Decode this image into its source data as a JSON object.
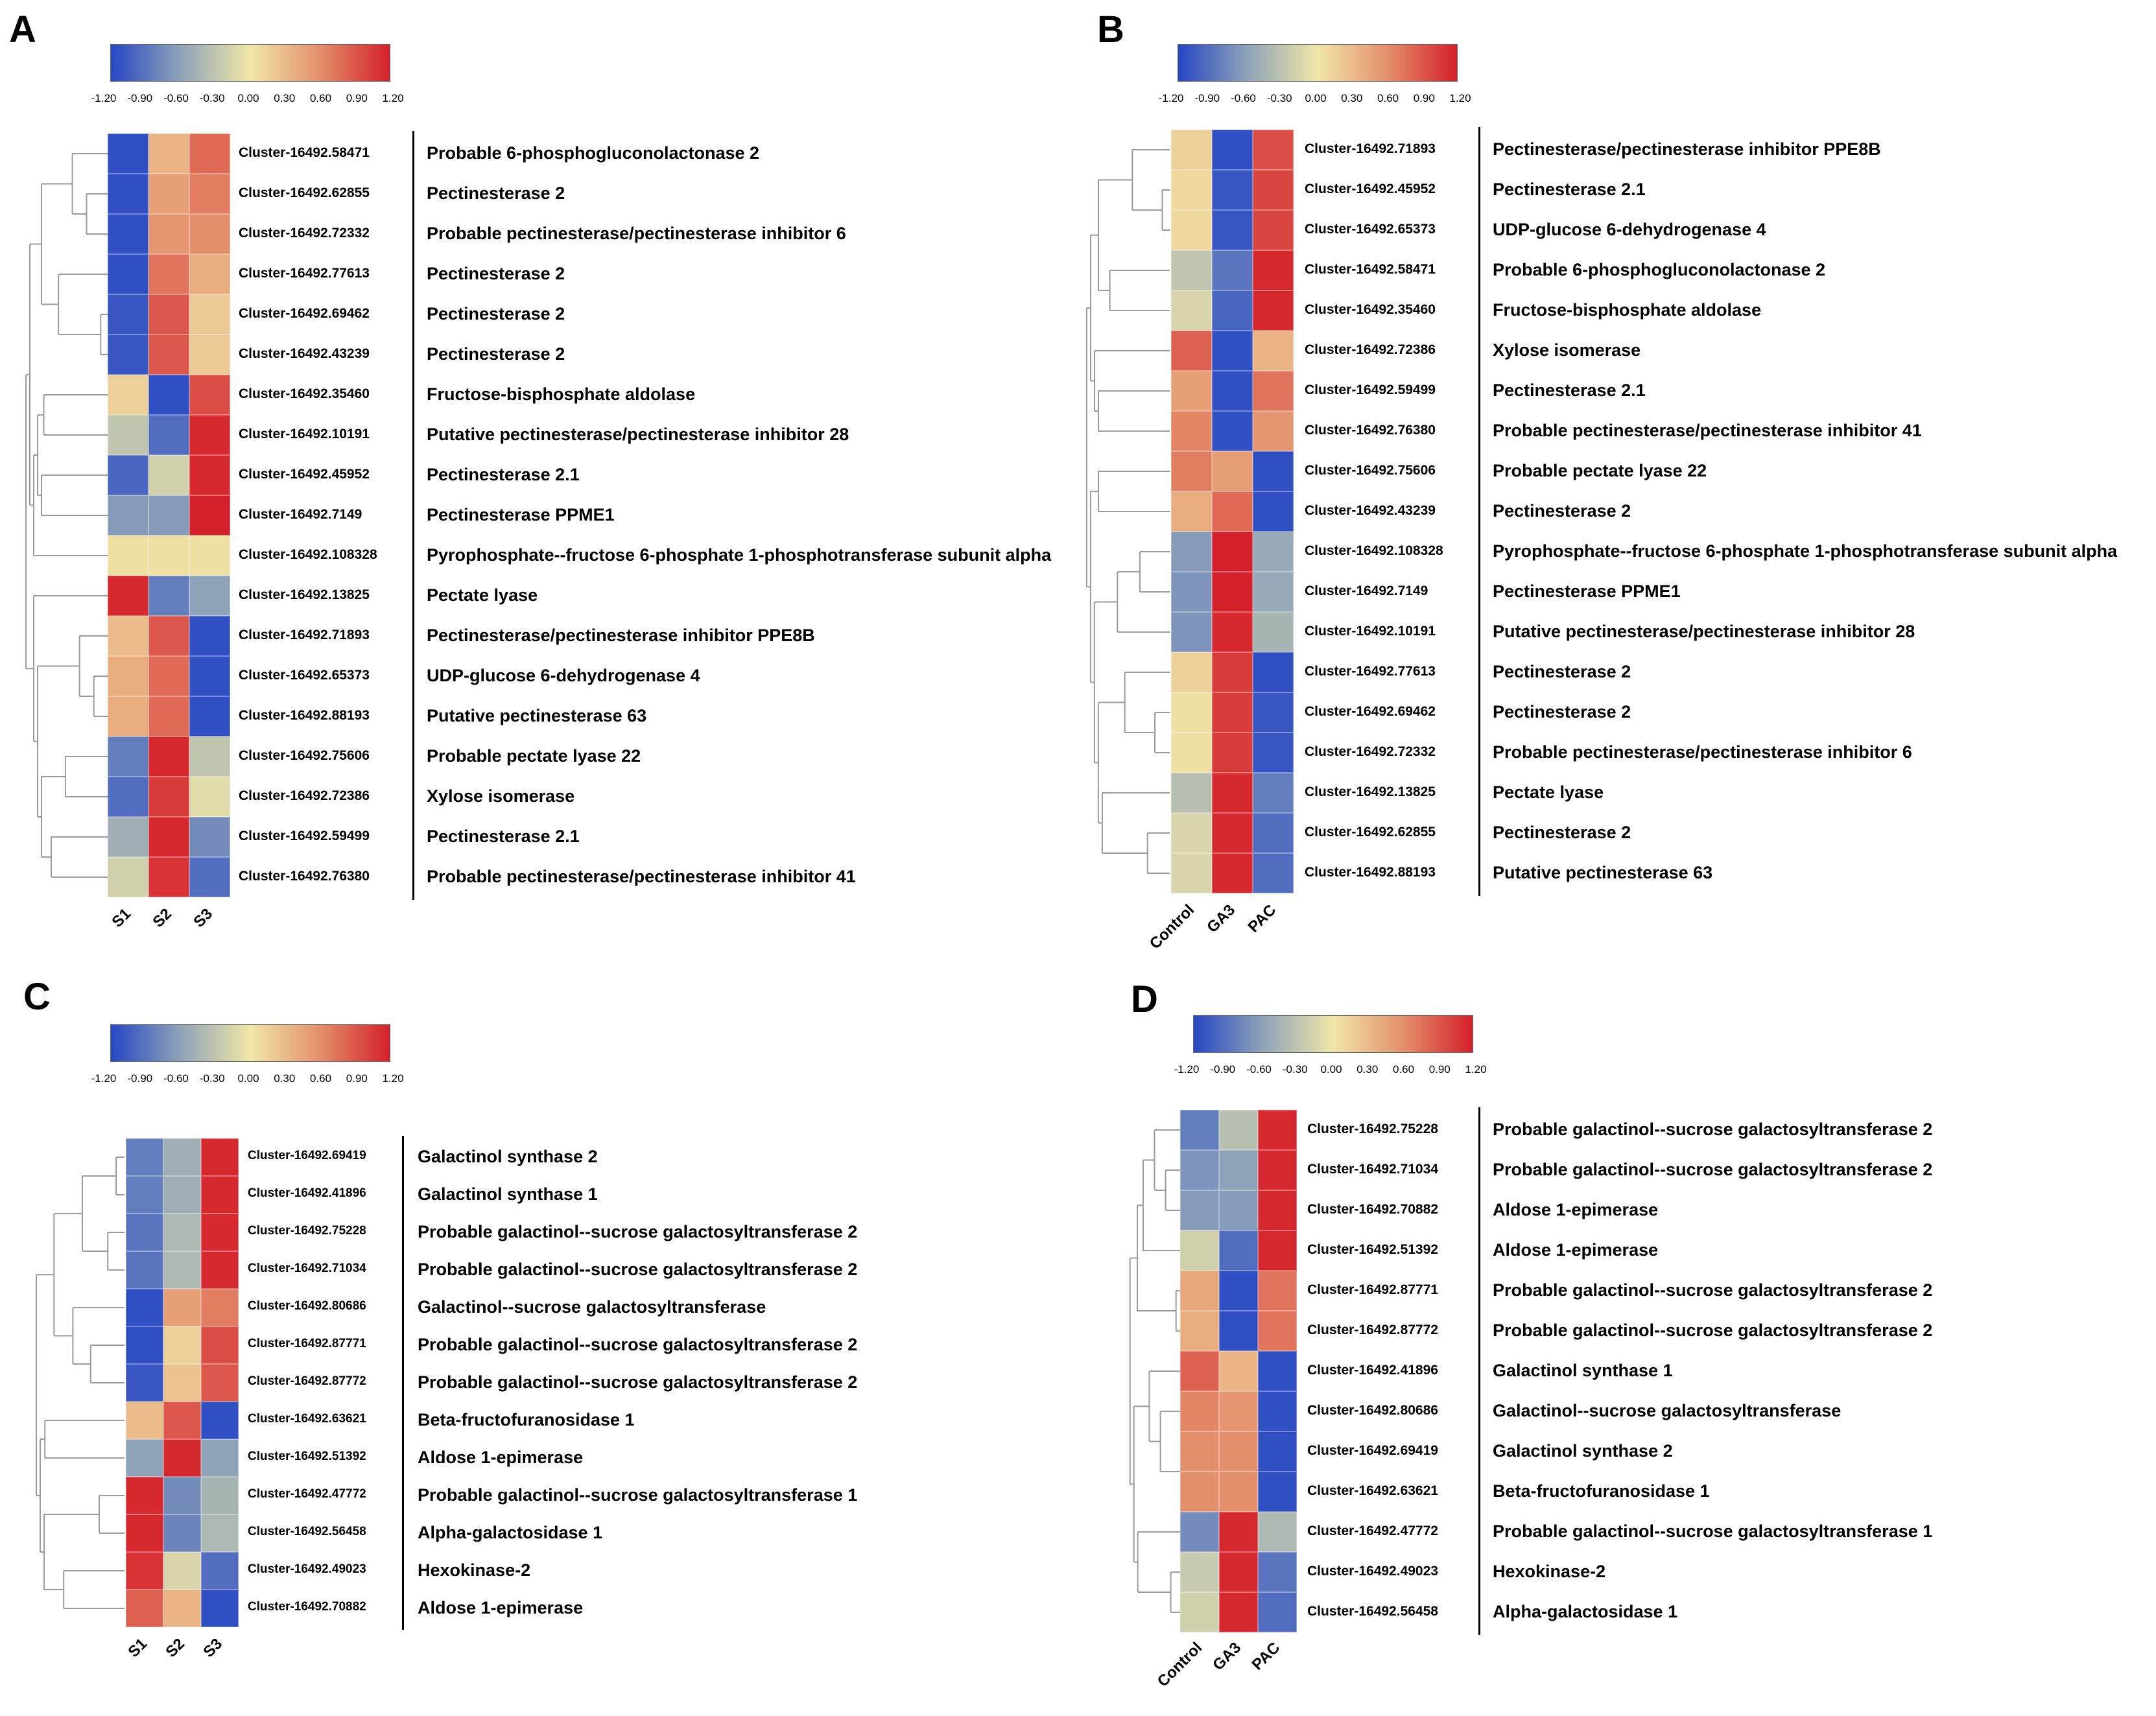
{
  "colormap": {
    "stops": [
      [
        "#2647c4",
        -1.2
      ],
      [
        "#8fa3b8",
        -0.6
      ],
      [
        "#f0e6a8",
        0.0
      ],
      [
        "#e48f6b",
        0.6
      ],
      [
        "#d4202a",
        1.2
      ]
    ],
    "ticks": [
      "-1.20",
      "-0.90",
      "-0.60",
      "-0.30",
      "0.00",
      "0.30",
      "0.60",
      "0.90",
      "1.20"
    ]
  },
  "chart_data": [
    {
      "panel": "A",
      "type": "heatmap",
      "columns": [
        "S1",
        "S2",
        "S3"
      ],
      "rows": [
        {
          "cluster": "Cluster-16492.58471",
          "gene": "Probable 6-phosphogluconolactonase 2",
          "values": [
            -1.15,
            0.35,
            0.8
          ]
        },
        {
          "cluster": "Cluster-16492.62855",
          "gene": "Pectinesterase 2",
          "values": [
            -1.15,
            0.5,
            0.7
          ]
        },
        {
          "cluster": "Cluster-16492.72332",
          "gene": "Probable pectinesterase/pectinesterase inhibitor 6",
          "values": [
            -1.15,
            0.55,
            0.6
          ]
        },
        {
          "cluster": "Cluster-16492.77613",
          "gene": "Pectinesterase 2",
          "values": [
            -1.15,
            0.75,
            0.4
          ]
        },
        {
          "cluster": "Cluster-16492.69462",
          "gene": "Pectinesterase 2",
          "values": [
            -1.1,
            0.9,
            0.2
          ]
        },
        {
          "cluster": "Cluster-16492.43239",
          "gene": "Pectinesterase 2",
          "values": [
            -1.1,
            0.9,
            0.2
          ]
        },
        {
          "cluster": "Cluster-16492.35460",
          "gene": "Fructose-bisphosphate aldolase",
          "values": [
            0.15,
            -1.15,
            0.95
          ]
        },
        {
          "cluster": "Cluster-16492.10191",
          "gene": "Putative pectinesterase/pectinesterase inhibitor 28",
          "values": [
            -0.3,
            -0.95,
            1.15
          ]
        },
        {
          "cluster": "Cluster-16492.45952",
          "gene": "Pectinesterase 2.1",
          "values": [
            -1.0,
            -0.2,
            1.15
          ]
        },
        {
          "cluster": "Cluster-16492.7149",
          "gene": "Pectinesterase PPME1",
          "values": [
            -0.65,
            -0.65,
            1.2
          ]
        },
        {
          "cluster": "Cluster-16492.108328",
          "gene": "Pyrophosphate--fructose 6-phosphate 1-phosphotransferase subunit alpha",
          "values": [
            0.05,
            0.05,
            0.05
          ]
        },
        {
          "cluster": "Cluster-16492.13825",
          "gene": "Pectate lyase",
          "values": [
            1.15,
            -0.85,
            -0.6
          ]
        },
        {
          "cluster": "Cluster-16492.71893",
          "gene": "Pectinesterase/pectinesterase inhibitor PPE8B",
          "values": [
            0.3,
            0.9,
            -1.15
          ]
        },
        {
          "cluster": "Cluster-16492.65373",
          "gene": "UDP-glucose 6-dehydrogenase 4",
          "values": [
            0.4,
            0.8,
            -1.15
          ]
        },
        {
          "cluster": "Cluster-16492.88193",
          "gene": "Putative pectinesterase 63",
          "values": [
            0.4,
            0.8,
            -1.15
          ]
        },
        {
          "cluster": "Cluster-16492.75606",
          "gene": "Probable pectate lyase 22",
          "values": [
            -0.85,
            1.15,
            -0.3
          ]
        },
        {
          "cluster": "Cluster-16492.72386",
          "gene": "Xylose isomerase",
          "values": [
            -0.95,
            1.05,
            -0.1
          ]
        },
        {
          "cluster": "Cluster-16492.59499",
          "gene": "Pectinesterase 2.1",
          "values": [
            -0.5,
            1.15,
            -0.75
          ]
        },
        {
          "cluster": "Cluster-16492.76380",
          "gene": "Probable pectinesterase/pectinesterase inhibitor 41",
          "values": [
            -0.2,
            1.1,
            -0.95
          ]
        }
      ]
    },
    {
      "panel": "B",
      "type": "heatmap",
      "columns": [
        "Control",
        "GA3",
        "PAC"
      ],
      "rows": [
        {
          "cluster": "Cluster-16492.71893",
          "gene": "Pectinesterase/pectinesterase inhibitor PPE8B",
          "values": [
            0.15,
            -1.15,
            0.95
          ]
        },
        {
          "cluster": "Cluster-16492.45952",
          "gene": "Pectinesterase 2.1",
          "values": [
            0.1,
            -1.1,
            1.0
          ]
        },
        {
          "cluster": "Cluster-16492.65373",
          "gene": "UDP-glucose 6-dehydrogenase 4",
          "values": [
            0.1,
            -1.1,
            1.0
          ]
        },
        {
          "cluster": "Cluster-16492.58471",
          "gene": "Probable 6-phosphogluconolactonase 2",
          "values": [
            -0.3,
            -0.9,
            1.15
          ]
        },
        {
          "cluster": "Cluster-16492.35460",
          "gene": "Fructose-bisphosphate aldolase",
          "values": [
            -0.15,
            -1.0,
            1.15
          ]
        },
        {
          "cluster": "Cluster-16492.72386",
          "gene": "Xylose isomerase",
          "values": [
            0.85,
            -1.15,
            0.35
          ]
        },
        {
          "cluster": "Cluster-16492.59499",
          "gene": "Pectinesterase 2.1",
          "values": [
            0.5,
            -1.15,
            0.75
          ]
        },
        {
          "cluster": "Cluster-16492.76380",
          "gene": "Probable pectinesterase/pectinesterase inhibitor 41",
          "values": [
            0.65,
            -1.15,
            0.55
          ]
        },
        {
          "cluster": "Cluster-16492.75606",
          "gene": "Probable pectate lyase 22",
          "values": [
            0.7,
            0.5,
            -1.15
          ]
        },
        {
          "cluster": "Cluster-16492.43239",
          "gene": "Pectinesterase 2",
          "values": [
            0.4,
            0.8,
            -1.15
          ]
        },
        {
          "cluster": "Cluster-16492.108328",
          "gene": "Pyrophosphate--fructose 6-phosphate 1-phosphotransferase subunit alpha",
          "values": [
            -0.65,
            1.2,
            -0.55
          ]
        },
        {
          "cluster": "Cluster-16492.7149",
          "gene": "Pectinesterase PPME1",
          "values": [
            -0.7,
            1.2,
            -0.55
          ]
        },
        {
          "cluster": "Cluster-16492.10191",
          "gene": "Putative pectinesterase/pectinesterase inhibitor 28",
          "values": [
            -0.7,
            1.15,
            -0.45
          ]
        },
        {
          "cluster": "Cluster-16492.77613",
          "gene": "Pectinesterase 2",
          "values": [
            0.15,
            1.05,
            -1.15
          ]
        },
        {
          "cluster": "Cluster-16492.69462",
          "gene": "Pectinesterase 2",
          "values": [
            0.05,
            1.05,
            -1.1
          ]
        },
        {
          "cluster": "Cluster-16492.72332",
          "gene": "Probable pectinesterase/pectinesterase inhibitor 6",
          "values": [
            0.05,
            1.05,
            -1.1
          ]
        },
        {
          "cluster": "Cluster-16492.13825",
          "gene": "Pectate lyase",
          "values": [
            -0.35,
            1.15,
            -0.85
          ]
        },
        {
          "cluster": "Cluster-16492.62855",
          "gene": "Pectinesterase 2",
          "values": [
            -0.15,
            1.15,
            -0.95
          ]
        },
        {
          "cluster": "Cluster-16492.88193",
          "gene": "Putative pectinesterase 63",
          "values": [
            -0.15,
            1.15,
            -0.95
          ]
        }
      ]
    },
    {
      "panel": "C",
      "type": "heatmap",
      "columns": [
        "S1",
        "S2",
        "S3"
      ],
      "rows": [
        {
          "cluster": "Cluster-16492.69419",
          "gene": "Galactinol synthase 2",
          "values": [
            -0.85,
            -0.5,
            1.15
          ]
        },
        {
          "cluster": "Cluster-16492.41896",
          "gene": "Galactinol synthase 1",
          "values": [
            -0.85,
            -0.5,
            1.15
          ]
        },
        {
          "cluster": "Cluster-16492.75228",
          "gene": "Probable galactinol--sucrose galactosyltransferase 2",
          "values": [
            -0.9,
            -0.4,
            1.15
          ]
        },
        {
          "cluster": "Cluster-16492.71034",
          "gene": "Probable galactinol--sucrose galactosyltransferase 2",
          "values": [
            -0.9,
            -0.4,
            1.15
          ]
        },
        {
          "cluster": "Cluster-16492.80686",
          "gene": "Galactinol--sucrose galactosyltransferase",
          "values": [
            -1.15,
            0.5,
            0.7
          ]
        },
        {
          "cluster": "Cluster-16492.87771",
          "gene": "Probable galactinol--sucrose galactosyltransferase 2",
          "values": [
            -1.15,
            0.15,
            0.95
          ]
        },
        {
          "cluster": "Cluster-16492.87772",
          "gene": "Probable galactinol--sucrose galactosyltransferase 2",
          "values": [
            -1.1,
            0.25,
            0.9
          ]
        },
        {
          "cluster": "Cluster-16492.63621",
          "gene": "Beta-fructofuranosidase 1",
          "values": [
            0.3,
            0.9,
            -1.15
          ]
        },
        {
          "cluster": "Cluster-16492.51392",
          "gene": "Aldose 1-epimerase",
          "values": [
            -0.6,
            1.15,
            -0.6
          ]
        },
        {
          "cluster": "Cluster-16492.47772",
          "gene": "Probable galactinol--sucrose galactosyltransferase 1",
          "values": [
            1.15,
            -0.75,
            -0.45
          ]
        },
        {
          "cluster": "Cluster-16492.56458",
          "gene": "Alpha-galactosidase 1",
          "values": [
            1.15,
            -0.8,
            -0.4
          ]
        },
        {
          "cluster": "Cluster-16492.49023",
          "gene": "Hexokinase-2",
          "values": [
            1.1,
            -0.15,
            -0.95
          ]
        },
        {
          "cluster": "Cluster-16492.70882",
          "gene": "Aldose 1-epimerase",
          "values": [
            0.85,
            0.35,
            -1.15
          ]
        }
      ]
    },
    {
      "panel": "D",
      "type": "heatmap",
      "columns": [
        "Control",
        "GA3",
        "PAC"
      ],
      "rows": [
        {
          "cluster": "Cluster-16492.75228",
          "gene": "Probable galactinol--sucrose galactosyltransferase 2",
          "values": [
            -0.85,
            -0.35,
            1.15
          ]
        },
        {
          "cluster": "Cluster-16492.71034",
          "gene": "Probable galactinol--sucrose galactosyltransferase 2",
          "values": [
            -0.7,
            -0.6,
            1.15
          ]
        },
        {
          "cluster": "Cluster-16492.70882",
          "gene": "Aldose 1-epimerase",
          "values": [
            -0.65,
            -0.65,
            1.15
          ]
        },
        {
          "cluster": "Cluster-16492.51392",
          "gene": "Aldose 1-epimerase",
          "values": [
            -0.2,
            -0.95,
            1.15
          ]
        },
        {
          "cluster": "Cluster-16492.87771",
          "gene": "Probable galactinol--sucrose galactosyltransferase 2",
          "values": [
            0.45,
            -1.15,
            0.75
          ]
        },
        {
          "cluster": "Cluster-16492.87772",
          "gene": "Probable galactinol--sucrose galactosyltransferase 2",
          "values": [
            0.4,
            -1.15,
            0.75
          ]
        },
        {
          "cluster": "Cluster-16492.41896",
          "gene": "Galactinol synthase 1",
          "values": [
            0.85,
            0.35,
            -1.15
          ]
        },
        {
          "cluster": "Cluster-16492.80686",
          "gene": "Galactinol--sucrose galactosyltransferase",
          "values": [
            0.65,
            0.55,
            -1.15
          ]
        },
        {
          "cluster": "Cluster-16492.69419",
          "gene": "Galactinol synthase 2",
          "values": [
            0.6,
            0.6,
            -1.15
          ]
        },
        {
          "cluster": "Cluster-16492.63621",
          "gene": "Beta-fructofuranosidase 1",
          "values": [
            0.6,
            0.6,
            -1.15
          ]
        },
        {
          "cluster": "Cluster-16492.47772",
          "gene": "Probable galactinol--sucrose galactosyltransferase 1",
          "values": [
            -0.75,
            1.15,
            -0.4
          ]
        },
        {
          "cluster": "Cluster-16492.49023",
          "gene": "Hexokinase-2",
          "values": [
            -0.25,
            1.15,
            -0.9
          ]
        },
        {
          "cluster": "Cluster-16492.56458",
          "gene": "Alpha-galactosidase 1",
          "values": [
            -0.2,
            1.15,
            -0.95
          ]
        }
      ]
    }
  ]
}
